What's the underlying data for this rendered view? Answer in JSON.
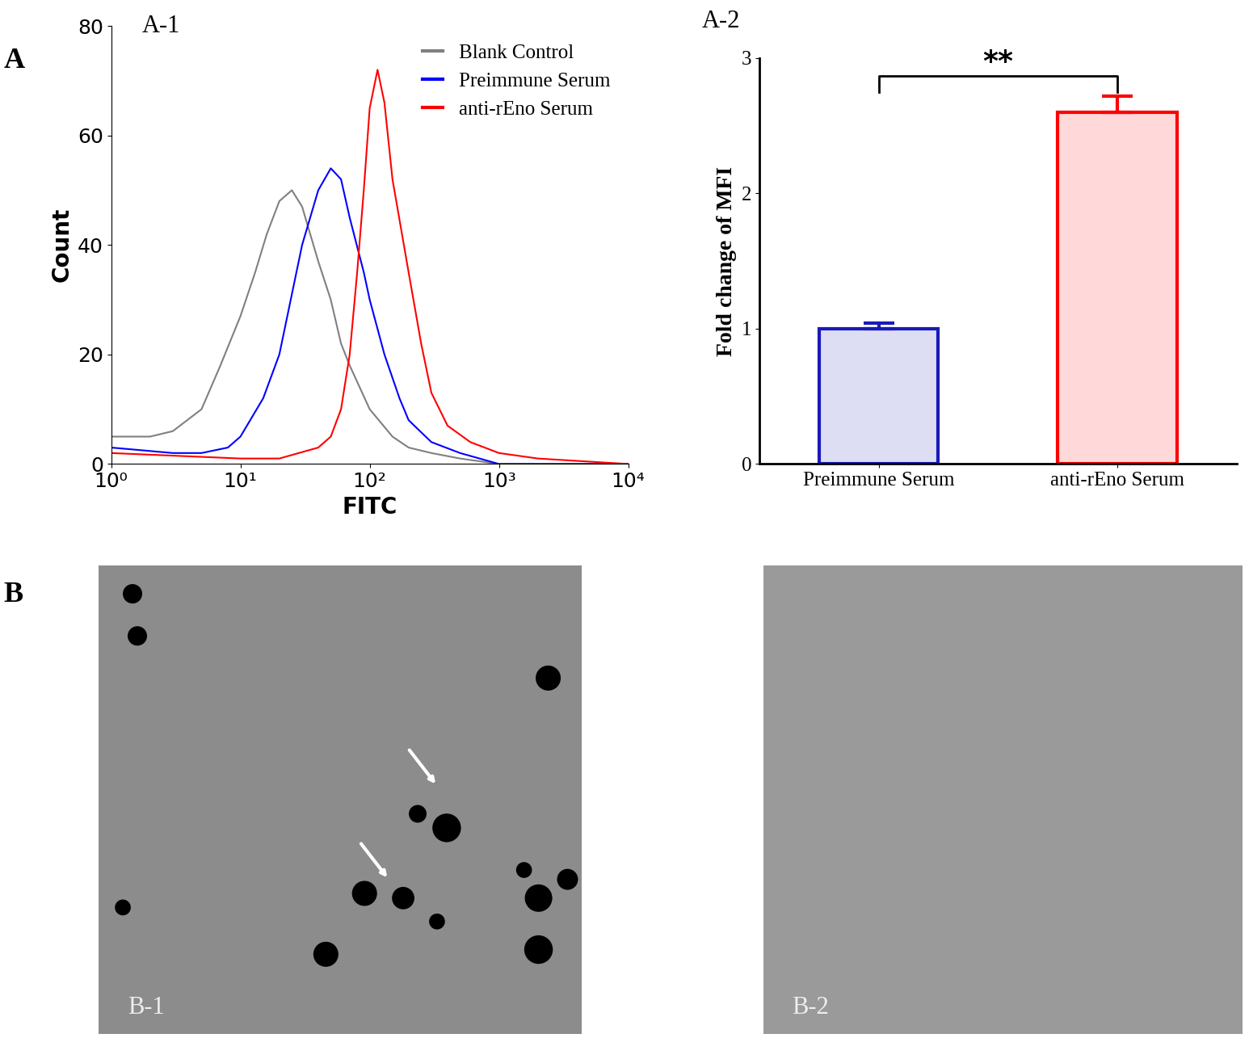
{
  "panel_labels": [
    "A",
    "B"
  ],
  "chart_data": [
    {
      "type": "line",
      "title": "A-1",
      "x_label": "FITC",
      "y_label": "Count",
      "log": "x",
      "xlim": [
        1,
        10000
      ],
      "xticks": [
        {
          "value": 1,
          "label": "10⁰"
        },
        {
          "value": 10,
          "label": "10¹"
        },
        {
          "value": 100,
          "label": "10²"
        },
        {
          "value": 1000,
          "label": "10³"
        },
        {
          "value": 10000,
          "label": "10⁴"
        }
      ],
      "ylim": [
        0,
        80
      ],
      "yticks": [
        0,
        20,
        40,
        60,
        80
      ],
      "legend": "upper right",
      "series": [
        {
          "name": "Blank Control",
          "color": "#808080",
          "x": [
            1,
            2,
            3,
            5,
            7,
            10,
            13,
            16,
            20,
            25,
            30,
            40,
            50,
            60,
            70,
            100,
            150,
            200,
            300,
            500,
            1000,
            10000
          ],
          "values": [
            5,
            5,
            6,
            10,
            18,
            27,
            35,
            42,
            48,
            50,
            47,
            37,
            30,
            22,
            18,
            10,
            5,
            3,
            2,
            1,
            0,
            0
          ]
        },
        {
          "name": "Preimmune Serum",
          "color": "#0000ff",
          "x": [
            1,
            3,
            5,
            8,
            10,
            15,
            20,
            30,
            40,
            50,
            60,
            70,
            90,
            100,
            130,
            170,
            200,
            300,
            500,
            1000,
            10000
          ],
          "values": [
            3,
            2,
            2,
            3,
            5,
            12,
            20,
            40,
            50,
            54,
            52,
            45,
            35,
            30,
            20,
            12,
            8,
            4,
            2,
            0,
            0
          ]
        },
        {
          "name": "anti-rEno Serum",
          "color": "#ff0000",
          "x": [
            1,
            10,
            20,
            40,
            50,
            60,
            70,
            80,
            90,
            100,
            115,
            130,
            150,
            200,
            250,
            300,
            400,
            600,
            1000,
            2000,
            10000
          ],
          "values": [
            2,
            1,
            1,
            3,
            5,
            10,
            20,
            35,
            50,
            65,
            72,
            66,
            52,
            35,
            22,
            13,
            7,
            4,
            2,
            1,
            0
          ]
        }
      ]
    },
    {
      "type": "bar",
      "title": "A-2",
      "y_label": "Fold change of MFI",
      "categories": [
        "Preimmune Serum",
        "anti-rEno Serum"
      ],
      "values": [
        1.0,
        2.6
      ],
      "errors": [
        0.04,
        0.12
      ],
      "colors": [
        "#1a1ab8",
        "#ff0000"
      ],
      "ylim": [
        0,
        3
      ],
      "yticks": [
        0,
        1,
        2,
        3
      ],
      "annotations": [
        {
          "text": "**"
        }
      ]
    }
  ],
  "images": [
    {
      "label": "B-1"
    },
    {
      "label": "B-2"
    }
  ]
}
